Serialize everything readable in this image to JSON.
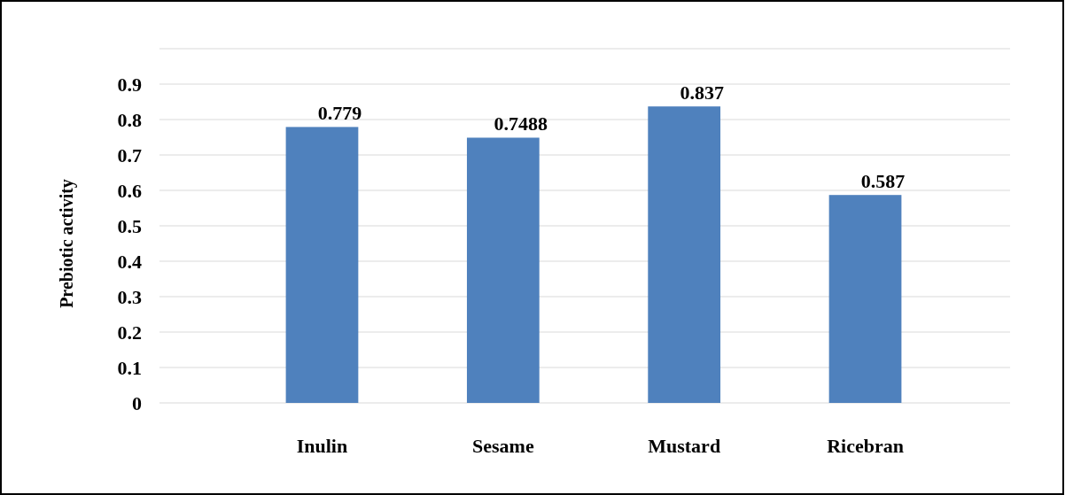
{
  "chart_data": {
    "type": "bar",
    "ylabel": "Prebiotic activity",
    "categories": [
      "Inulin",
      "Sesame",
      "Mustard",
      "Ricebran"
    ],
    "values": [
      0.779,
      0.7488,
      0.837,
      0.587
    ],
    "color": "#4f81bd",
    "ylim": [
      0,
      1.0
    ],
    "yticks": [
      0,
      0.1,
      0.2,
      0.3,
      0.4,
      0.5,
      0.6,
      0.7,
      0.8,
      0.9,
      {
        "value": 1.0,
        "label": null
      }
    ],
    "grid": "y",
    "data_labels": true
  }
}
